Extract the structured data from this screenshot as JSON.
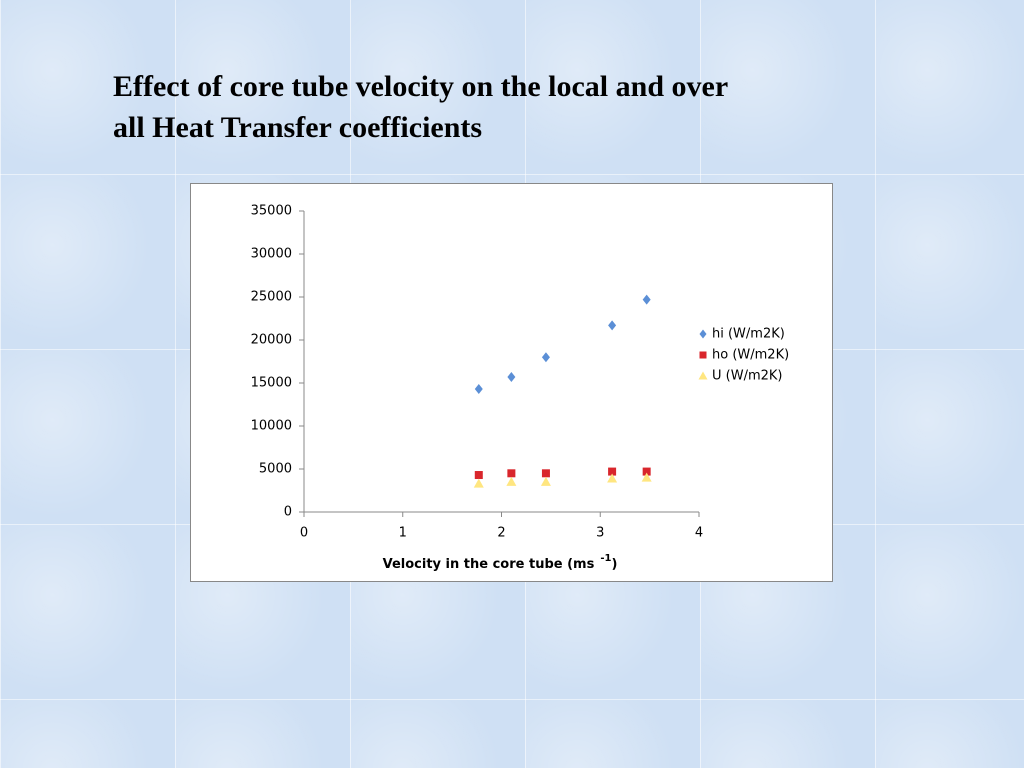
{
  "chart_data": {
    "type": "scatter",
    "title": "Effect of core tube velocity on the local and over all Heat Transfer coefficients",
    "xlabel": [
      "Velocity in the core tube (ms",
      "-1",
      ")"
    ],
    "x": [
      1.77,
      2.1,
      2.45,
      3.12,
      3.47
    ],
    "series": [
      {
        "name": "hi (W/m2K)",
        "color": "#5b8fd6",
        "marker": "diamond",
        "values": [
          14300,
          15700,
          18000,
          21700,
          24700
        ]
      },
      {
        "name": "ho (W/m2K)",
        "color": "#d9262c",
        "marker": "square",
        "values": [
          4300,
          4500,
          4500,
          4700,
          4700
        ]
      },
      {
        "name": "U (W/m2K)",
        "color": "#ffe680",
        "marker": "triangle",
        "values": [
          3300,
          3500,
          3500,
          3900,
          4000
        ]
      }
    ],
    "xlim": [
      0,
      4
    ],
    "xticks": [
      0,
      1,
      2,
      3,
      4
    ],
    "ylim": [
      0,
      35000
    ],
    "yticks": [
      0,
      5000,
      10000,
      15000,
      20000,
      25000,
      30000,
      35000
    ],
    "grid": false,
    "legend": "right"
  }
}
